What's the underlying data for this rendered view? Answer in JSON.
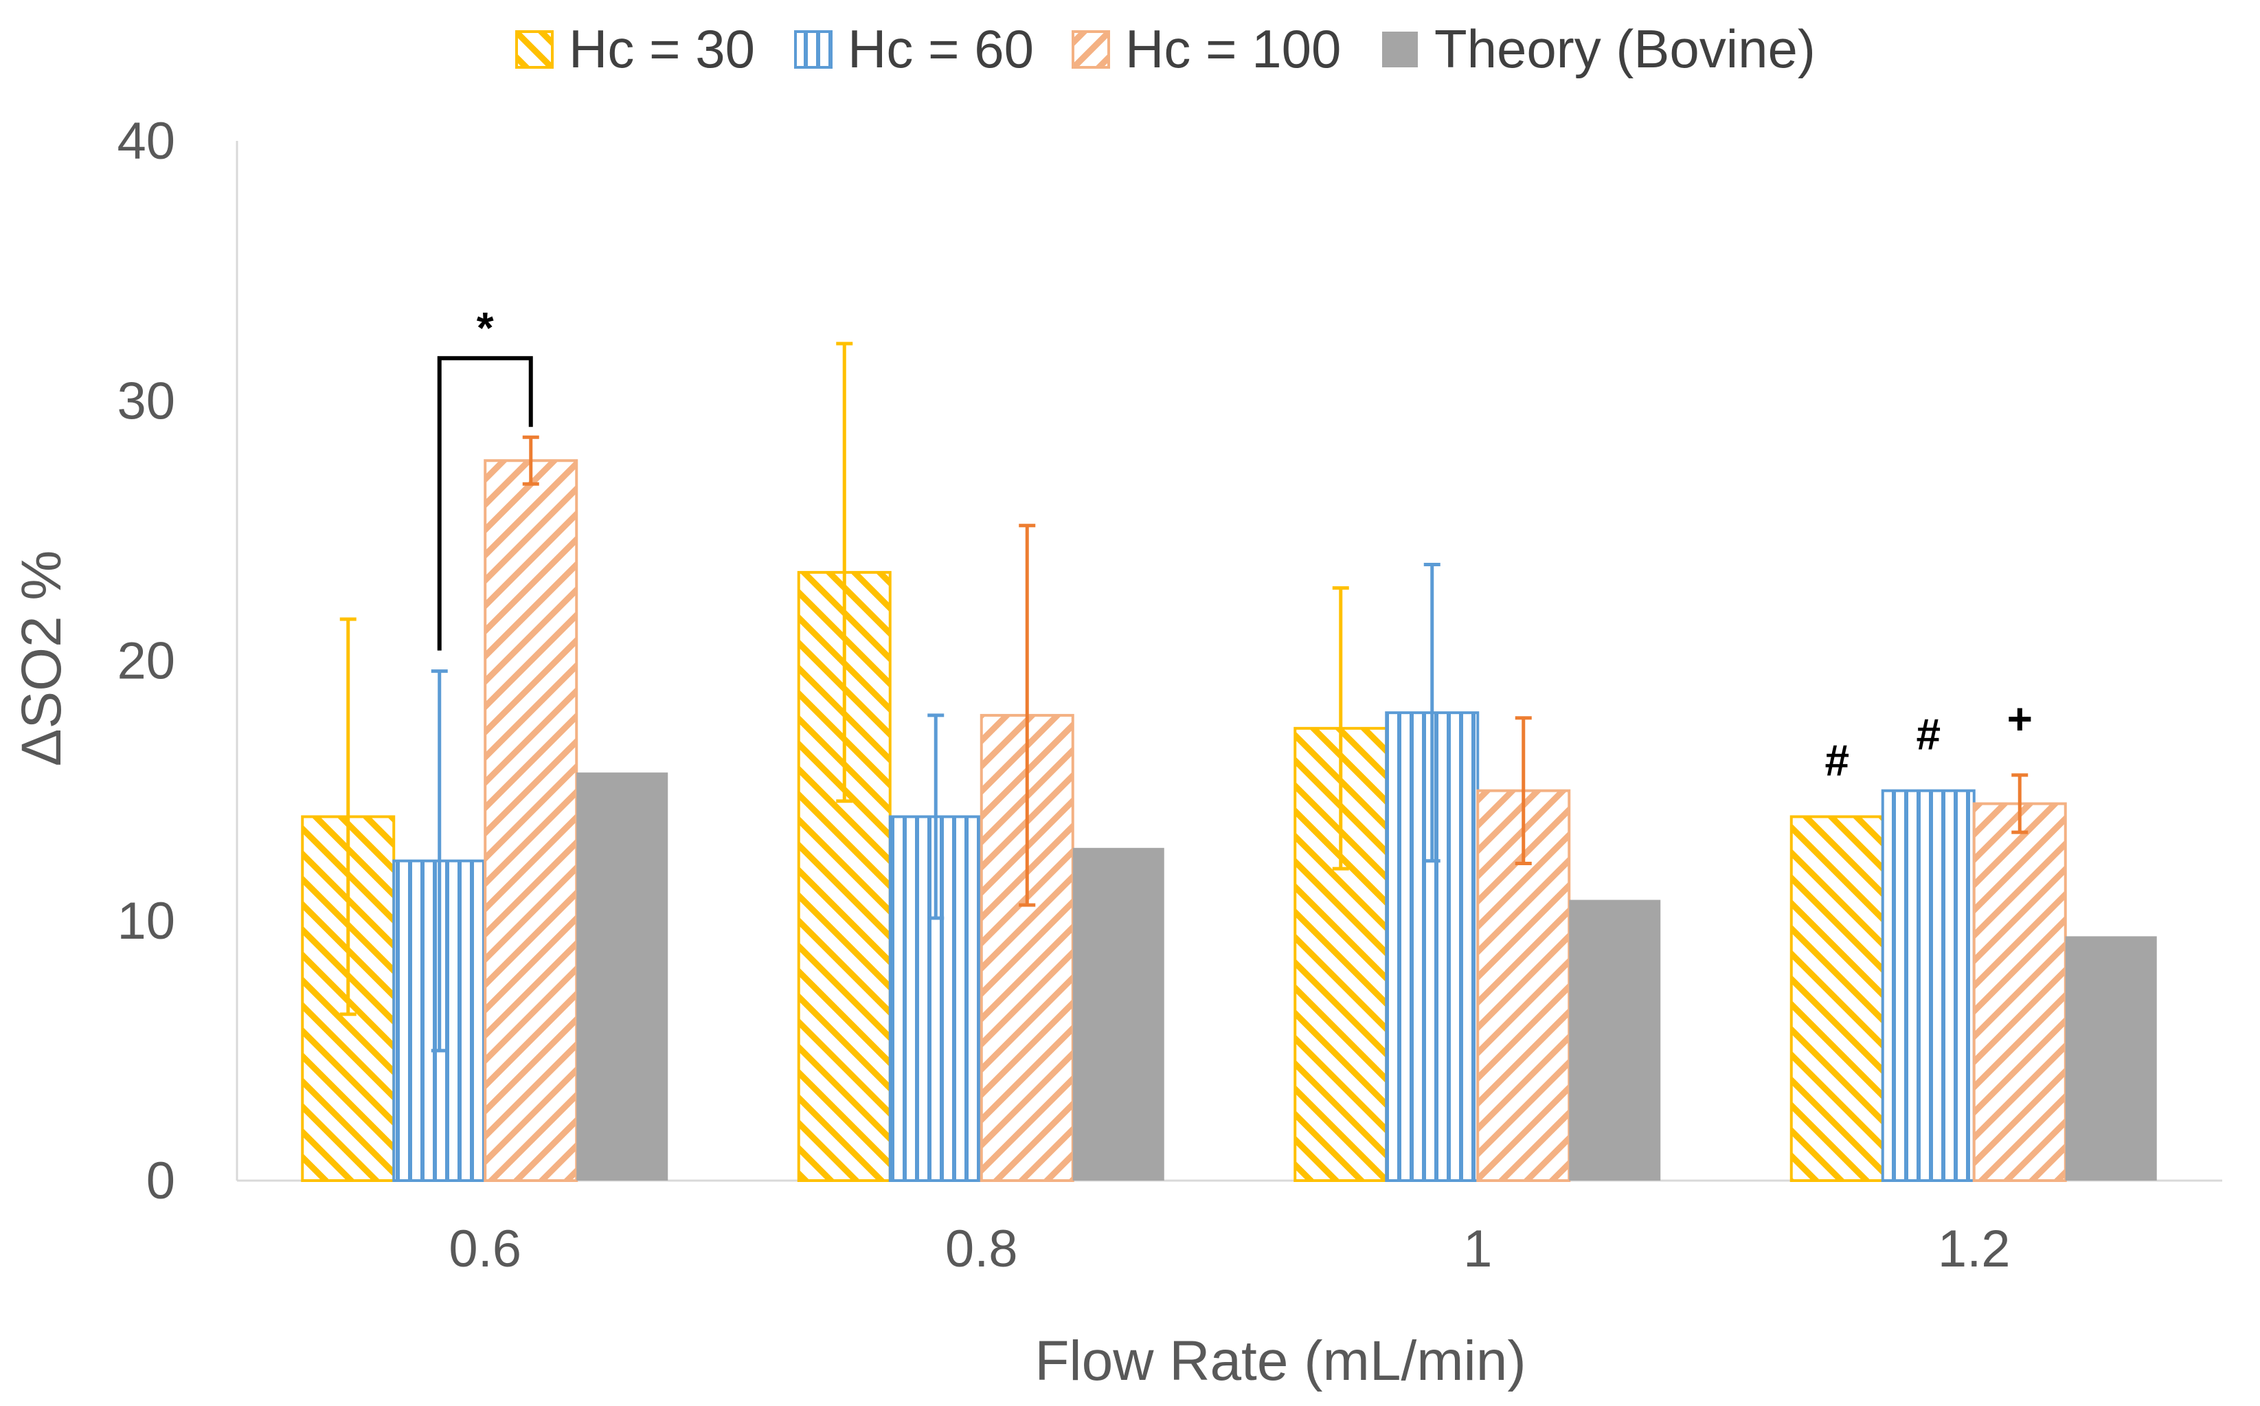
{
  "chart_data": {
    "type": "bar",
    "title": "",
    "xlabel": "Flow Rate (mL/min)",
    "ylabel": "ΔSO2 %",
    "ylim": [
      0,
      40
    ],
    "yticks": [
      0,
      10,
      20,
      30,
      40
    ],
    "ytick_labels": [
      "0",
      "10",
      "20",
      "30",
      "40"
    ],
    "categories": [
      "0.6",
      "0.8",
      "1",
      "1.2"
    ],
    "grid": false,
    "legend_position": "top-center",
    "series": [
      {
        "name": "Hc = 30",
        "color": "#FFC000",
        "pattern": "diagonal-down",
        "values": [
          14.0,
          23.4,
          17.4,
          14.0
        ],
        "error": [
          7.6,
          8.8,
          5.4,
          null
        ]
      },
      {
        "name": "Hc = 60",
        "color": "#5B9BD5",
        "pattern": "vertical",
        "values": [
          12.3,
          14.0,
          18.0,
          15.0
        ],
        "error": [
          7.3,
          3.9,
          5.7,
          null
        ]
      },
      {
        "name": "Hc = 100",
        "color": "#ED7D31",
        "pattern": "diagonal-up",
        "values": [
          27.7,
          17.9,
          15.0,
          14.5
        ],
        "error": [
          0.9,
          7.3,
          2.8,
          1.1
        ]
      },
      {
        "name": "Theory (Bovine)",
        "color": "#A5A5A5",
        "pattern": "solid",
        "values": [
          15.7,
          12.8,
          10.8,
          9.4
        ],
        "error": [
          null,
          null,
          null,
          null
        ]
      }
    ],
    "annotations": [
      {
        "text": "*",
        "type": "bracket",
        "category_index": 0,
        "from_series": 1,
        "to_series": 2
      },
      {
        "text": "#",
        "category_index": 3,
        "series_index": 0
      },
      {
        "text": "#",
        "category_index": 3,
        "series_index": 1
      },
      {
        "text": "+",
        "category_index": 3,
        "series_index": 2
      }
    ]
  }
}
